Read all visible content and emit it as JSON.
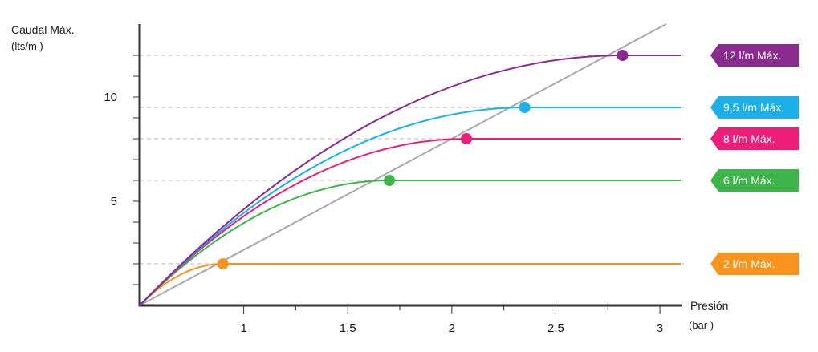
{
  "chart_data": {
    "type": "line",
    "ylabel": "Caudal Máx.",
    "ylabel_unit": "(lts/m )",
    "xlabel": "Presión",
    "xlabel_unit": "(bar )",
    "xlim": [
      0.5,
      3.1
    ],
    "ylim": [
      0,
      13.5
    ],
    "x_ticks": [
      {
        "value": 1,
        "label": "1"
      },
      {
        "value": 1.5,
        "label": "1,5"
      },
      {
        "value": 2,
        "label": "2"
      },
      {
        "value": 2.5,
        "label": "2,5"
      },
      {
        "value": 3,
        "label": "3"
      }
    ],
    "y_ticks": [
      {
        "value": 5,
        "label": "5"
      },
      {
        "value": 10,
        "label": "10"
      }
    ],
    "grid": "dashed reference lines at each max flow value",
    "reference_line": {
      "from": [
        0.5,
        0
      ],
      "to": [
        3.03,
        13.5
      ]
    },
    "series": [
      {
        "label": "2 l/m Máx.",
        "max_flow": 2,
        "saturation_pressure": 0.9,
        "end_pressure": 3.1,
        "color": "#f7941d"
      },
      {
        "label": "6 l/m Máx.",
        "max_flow": 6,
        "saturation_pressure": 1.7,
        "end_pressure": 3.1,
        "color": "#3db54a"
      },
      {
        "label": "8 l/m Máx.",
        "max_flow": 8,
        "saturation_pressure": 2.07,
        "end_pressure": 3.1,
        "color": "#ec1e79"
      },
      {
        "label": "9,5 l/m Máx.",
        "max_flow": 9.5,
        "saturation_pressure": 2.35,
        "end_pressure": 3.1,
        "color": "#1cafea"
      },
      {
        "label": "12 l/m Máx.",
        "max_flow": 12,
        "saturation_pressure": 2.82,
        "end_pressure": 3.1,
        "color": "#8b2a8f"
      }
    ],
    "axis_color": "#333333",
    "reference_line_color": "#a9a9a9",
    "dashed_line_color": "#b5b5b5"
  }
}
